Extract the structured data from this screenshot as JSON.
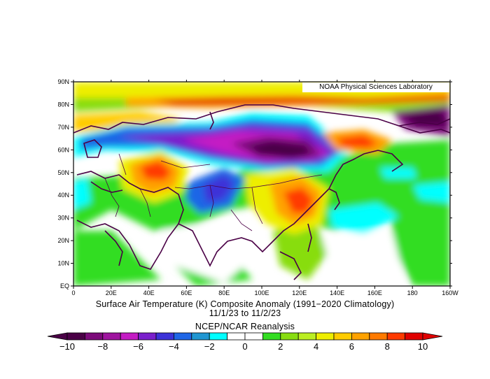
{
  "credit": "NOAA Physical Sciences Laboratory",
  "title": "Surface Air Temperature (K) Composite Anomaly (1991−2020 Climatology)",
  "date_range": "11/1/23  to 11/2/23",
  "source": "NCEP/NCAR Reanalysis",
  "lat_ticks": [
    "90N",
    "80N",
    "70N",
    "60N",
    "50N",
    "40N",
    "30N",
    "20N",
    "10N",
    "EQ"
  ],
  "lon_ticks": [
    "0",
    "20E",
    "40E",
    "60E",
    "80E",
    "100E",
    "120E",
    "140E",
    "160E",
    "180",
    "160W"
  ],
  "colorbar": {
    "labels": [
      "−10",
      "−8",
      "−6",
      "−4",
      "−2",
      "0",
      "2",
      "4",
      "6",
      "8",
      "10"
    ],
    "colors": [
      "#4a0046",
      "#7c0a7a",
      "#9f149f",
      "#c41cc4",
      "#7a1fcc",
      "#3c32d8",
      "#1f66e6",
      "#1f96d2",
      "#00ffff",
      "#ffffff",
      "#ffffff",
      "#33dd22",
      "#88dd11",
      "#bbee22",
      "#eeee00",
      "#ffcc00",
      "#ffa200",
      "#ff7a00",
      "#ff3a00",
      "#e00000"
    ],
    "unit": "K"
  },
  "map": {
    "region": "0-160W, EQ-90N",
    "lat_range": [
      0,
      90
    ],
    "lon_range": [
      0,
      200
    ]
  },
  "palette": {
    "warm_strong": "#ff3a00",
    "warm": "#ffa200",
    "mild_warm": "#eeee00",
    "slight_warm": "#33dd22",
    "neutral": "#ffffff",
    "slight_cold": "#00ffff",
    "cold": "#1f66e6",
    "very_cold": "#9f149f",
    "extreme_cold": "#4a0046",
    "coastline": "#4a0046"
  }
}
